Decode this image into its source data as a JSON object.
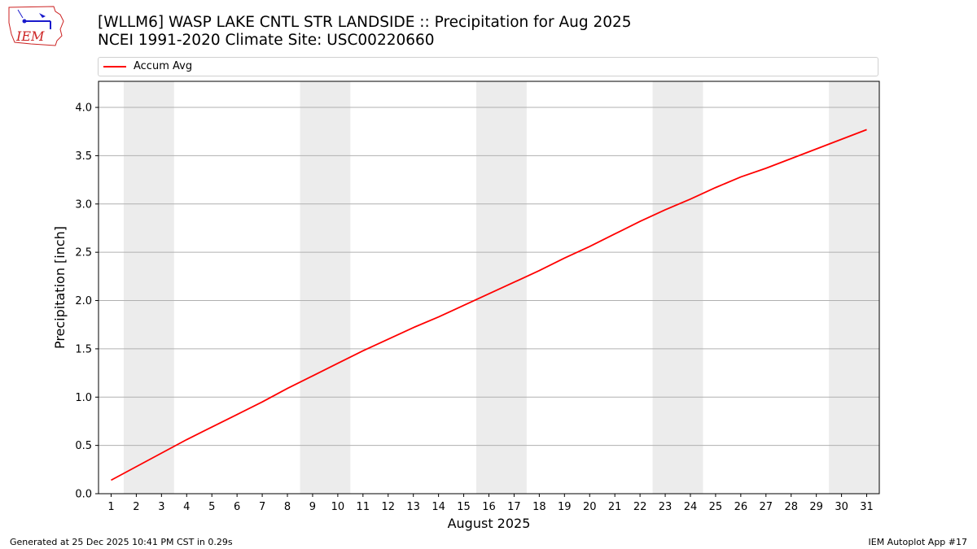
{
  "header": {
    "title": "[WLLM6] WASP LAKE CNTL STR LANDSIDE :: Precipitation for Aug 2025",
    "subtitle": "NCEI 1991-2020 Climate Site: USC00220660",
    "logo_text": "IEM"
  },
  "footer": {
    "generated": "Generated at 25 Dec 2025 10:41 PM CST in 0.29s",
    "app": "IEM Autoplot App #17"
  },
  "colors": {
    "series": "#ff0000",
    "weekend_band": "#ececec",
    "grid": "#b0b0b0",
    "logo": "#cc2222",
    "logo_accent": "#1a1acc"
  },
  "chart_data": {
    "type": "line",
    "title": "[WLLM6] WASP LAKE CNTL STR LANDSIDE :: Precipitation for Aug 2025",
    "subtitle": "NCEI 1991-2020 Climate Site: USC00220660",
    "xlabel": "August 2025",
    "ylabel": "Precipitation [inch]",
    "x": [
      1,
      2,
      3,
      4,
      5,
      6,
      7,
      8,
      9,
      10,
      11,
      12,
      13,
      14,
      15,
      16,
      17,
      18,
      19,
      20,
      21,
      22,
      23,
      24,
      25,
      26,
      27,
      28,
      29,
      30,
      31
    ],
    "series": [
      {
        "name": "Accum Avg",
        "values": [
          0.14,
          0.28,
          0.42,
          0.56,
          0.69,
          0.82,
          0.95,
          1.09,
          1.22,
          1.35,
          1.48,
          1.6,
          1.72,
          1.83,
          1.95,
          2.07,
          2.19,
          2.31,
          2.44,
          2.56,
          2.69,
          2.82,
          2.94,
          3.05,
          3.17,
          3.28,
          3.37,
          3.47,
          3.57,
          3.67,
          3.77
        ]
      }
    ],
    "weekend_days": [
      [
        2,
        3
      ],
      [
        9,
        10
      ],
      [
        16,
        17
      ],
      [
        23,
        24
      ],
      [
        30,
        31
      ]
    ],
    "xlim": [
      0.5,
      31.5
    ],
    "ylim": [
      0,
      4.27
    ],
    "yticks": [
      0.0,
      0.5,
      1.0,
      1.5,
      2.0,
      2.5,
      3.0,
      3.5,
      4.0
    ],
    "grid": "horizontal",
    "legend": {
      "position": "top",
      "entries": [
        "Accum Avg"
      ]
    }
  }
}
